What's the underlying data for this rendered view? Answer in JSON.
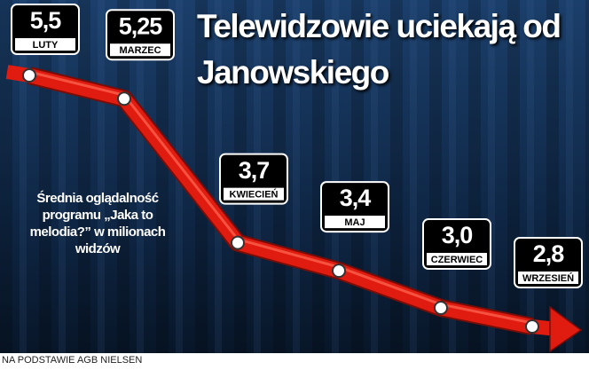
{
  "chart_data": {
    "type": "line",
    "title": "Telewidzowie uciekają od Janowskiego",
    "annotation": "Średnia oglądalność programu „Jaka to melodia?” w milionach widzów",
    "source": "NA PODSTAWIE AGB NIELSEN",
    "categories": [
      "LUTY",
      "MARZEC",
      "KWIECIEŃ",
      "MAJ",
      "CZERWIEC",
      "WRZESIEŃ"
    ],
    "values": [
      5.5,
      5.25,
      3.7,
      3.4,
      3.0,
      2.8
    ],
    "value_labels": [
      "5,5",
      "5,25",
      "3,7",
      "3,4",
      "3,0",
      "2,8"
    ],
    "color": "#e01b10"
  }
}
